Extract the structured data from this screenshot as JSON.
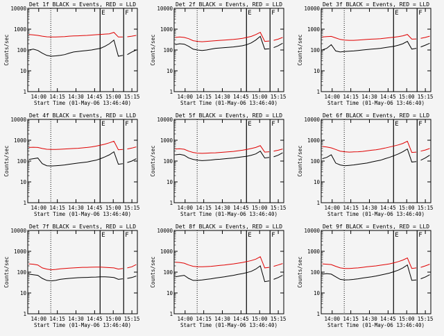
{
  "chart_data": [
    {
      "type": "line",
      "title": "Det 1f BLACK = Events, RED = LLD",
      "xlabel": "Start Time (01-May-06 13:46:40)",
      "ylabel": "Counts/sec",
      "yscale": "log",
      "ylim": [
        1,
        10000
      ],
      "x_ticks": [
        "14:00",
        "14:15",
        "14:30",
        "14:45",
        "15:00",
        "15:15"
      ],
      "y_ticks": [
        "1",
        "10",
        "100",
        "1000",
        "10000"
      ],
      "markers": [
        "E",
        "F"
      ],
      "series": [
        {
          "name": "Events",
          "color": "#000000",
          "values": [
            100,
            110,
            95,
            70,
            55,
            50,
            52,
            55,
            60,
            70,
            80,
            85,
            90,
            95,
            100,
            110,
            120,
            150,
            200,
            300,
            50,
            55,
            60,
            80,
            100
          ]
        },
        {
          "name": "LLD",
          "color": "#e00000",
          "values": [
            550,
            530,
            500,
            460,
            430,
            420,
            420,
            430,
            440,
            460,
            470,
            480,
            490,
            500,
            520,
            540,
            560,
            580,
            600,
            700,
            420,
            420,
            430,
            460,
            500
          ]
        }
      ]
    },
    {
      "type": "line",
      "title": "Det 2f BLACK = Events, RED = LLD",
      "xlabel": "Start Time (01-May-06 13:46:40)",
      "ylabel": "Counts/sec",
      "yscale": "log",
      "ylim": [
        1,
        10000
      ],
      "x_ticks": [
        "14:00",
        "14:15",
        "14:30",
        "14:45",
        "15:00",
        "15:15"
      ],
      "y_ticks": [
        "1",
        "10",
        "100",
        "1000",
        "10000"
      ],
      "markers": [
        "E",
        "F"
      ],
      "series": [
        {
          "name": "Events",
          "color": "#000000",
          "values": [
            180,
            200,
            190,
            150,
            110,
            100,
            95,
            100,
            110,
            120,
            125,
            130,
            135,
            140,
            150,
            160,
            180,
            220,
            300,
            450,
            110,
            115,
            130,
            160,
            210
          ]
        },
        {
          "name": "LLD",
          "color": "#e00000",
          "values": [
            400,
            420,
            400,
            350,
            280,
            260,
            250,
            260,
            270,
            280,
            290,
            300,
            310,
            320,
            340,
            360,
            400,
            450,
            550,
            700,
            260,
            270,
            290,
            330,
            400
          ]
        }
      ]
    },
    {
      "type": "line",
      "title": "Det 3f BLACK = Events, RED = LLD",
      "xlabel": "Start Time (01-May-06 13:46:40)",
      "ylabel": "Counts/sec",
      "yscale": "log",
      "ylim": [
        1,
        10000
      ],
      "x_ticks": [
        "14:00",
        "14:15",
        "14:30",
        "14:45",
        "15:00",
        "15:15"
      ],
      "y_ticks": [
        "1",
        "10",
        "100",
        "1000",
        "10000"
      ],
      "markers": [
        "E",
        "F"
      ],
      "series": [
        {
          "name": "Events",
          "color": "#000000",
          "values": [
            100,
            120,
            180,
            90,
            80,
            85,
            88,
            90,
            95,
            100,
            105,
            110,
            115,
            120,
            130,
            140,
            150,
            170,
            200,
            260,
            110,
            120,
            140,
            170,
            210
          ]
        },
        {
          "name": "LLD",
          "color": "#e00000",
          "values": [
            420,
            440,
            450,
            380,
            320,
            300,
            290,
            290,
            300,
            310,
            320,
            330,
            340,
            350,
            370,
            390,
            410,
            440,
            480,
            560,
            330,
            340,
            360,
            400,
            460
          ]
        }
      ]
    },
    {
      "type": "line",
      "title": "Det 4f BLACK = Events, RED = LLD",
      "xlabel": "Start Time (01-May-06 13:46:40)",
      "ylabel": "Counts/sec",
      "yscale": "log",
      "ylim": [
        1,
        10000
      ],
      "x_ticks": [
        "14:00",
        "14:15",
        "14:30",
        "14:45",
        "15:00",
        "15:15"
      ],
      "y_ticks": [
        "1",
        "10",
        "100",
        "1000",
        "10000"
      ],
      "markers": [
        "E",
        "F"
      ],
      "series": [
        {
          "name": "Events",
          "color": "#000000",
          "values": [
            120,
            130,
            140,
            75,
            60,
            58,
            60,
            62,
            65,
            70,
            75,
            80,
            85,
            90,
            100,
            110,
            130,
            160,
            200,
            280,
            70,
            75,
            85,
            100,
            130
          ]
        },
        {
          "name": "LLD",
          "color": "#e00000",
          "values": [
            450,
            460,
            450,
            400,
            370,
            360,
            360,
            370,
            380,
            390,
            400,
            410,
            430,
            450,
            480,
            520,
            580,
            650,
            750,
            900,
            350,
            360,
            380,
            420,
            480
          ]
        }
      ]
    },
    {
      "type": "line",
      "title": "Det 5f BLACK = Events, RED = LLD",
      "xlabel": "Start Time (01-May-06 13:46:40)",
      "ylabel": "Counts/sec",
      "yscale": "log",
      "ylim": [
        1,
        10000
      ],
      "x_ticks": [
        "14:00",
        "14:15",
        "14:30",
        "14:45",
        "15:00",
        "15:15"
      ],
      "y_ticks": [
        "1",
        "10",
        "100",
        "1000",
        "10000"
      ],
      "markers": [
        "E",
        "F"
      ],
      "series": [
        {
          "name": "Events",
          "color": "#000000",
          "values": [
            200,
            210,
            190,
            140,
            120,
            110,
            105,
            108,
            112,
            118,
            122,
            128,
            135,
            140,
            150,
            160,
            170,
            190,
            220,
            300,
            140,
            150,
            160,
            190,
            250
          ]
        },
        {
          "name": "LLD",
          "color": "#e00000",
          "values": [
            380,
            390,
            370,
            300,
            260,
            240,
            235,
            240,
            245,
            250,
            260,
            270,
            280,
            290,
            310,
            330,
            360,
            400,
            450,
            550,
            270,
            280,
            300,
            330,
            380
          ]
        }
      ]
    },
    {
      "type": "line",
      "title": "Det 6f BLACK = Events, RED = LLD",
      "xlabel": "Start Time (01-May-06 13:46:40)",
      "ylabel": "Counts/sec",
      "yscale": "log",
      "ylim": [
        1,
        10000
      ],
      "x_ticks": [
        "14:00",
        "14:15",
        "14:30",
        "14:45",
        "15:00",
        "15:15"
      ],
      "y_ticks": [
        "1",
        "10",
        "100",
        "1000",
        "10000"
      ],
      "markers": [
        "E",
        "F"
      ],
      "series": [
        {
          "name": "Events",
          "color": "#000000",
          "values": [
            130,
            150,
            200,
            80,
            65,
            60,
            62,
            65,
            70,
            75,
            80,
            90,
            100,
            110,
            130,
            150,
            180,
            220,
            280,
            380,
            90,
            95,
            110,
            140,
            190
          ]
        },
        {
          "name": "LLD",
          "color": "#e00000",
          "values": [
            500,
            470,
            430,
            360,
            300,
            280,
            270,
            275,
            280,
            290,
            310,
            330,
            350,
            380,
            420,
            470,
            530,
            600,
            700,
            900,
            260,
            270,
            300,
            340,
            400
          ]
        }
      ]
    },
    {
      "type": "line",
      "title": "Det 7f BLACK = Events, RED = LLD",
      "xlabel": "Start Time (01-May-06 13:46:40)",
      "ylabel": "Counts/sec",
      "yscale": "log",
      "ylim": [
        1,
        10000
      ],
      "x_ticks": [
        "14:00",
        "14:15",
        "14:30",
        "14:45",
        "15:00",
        "15:15"
      ],
      "y_ticks": [
        "1",
        "10",
        "100",
        "1000",
        "10000"
      ],
      "markers": [
        "E",
        "F"
      ],
      "series": [
        {
          "name": "Events",
          "color": "#000000",
          "values": [
            80,
            75,
            70,
            50,
            40,
            38,
            40,
            45,
            48,
            50,
            52,
            54,
            55,
            56,
            57,
            58,
            60,
            60,
            58,
            55,
            45,
            48,
            50,
            55,
            65
          ]
        },
        {
          "name": "LLD",
          "color": "#e00000",
          "values": [
            250,
            240,
            220,
            160,
            140,
            130,
            135,
            145,
            150,
            155,
            160,
            165,
            170,
            170,
            172,
            174,
            175,
            170,
            165,
            160,
            140,
            150,
            160,
            180,
            230
          ]
        }
      ]
    },
    {
      "type": "line",
      "title": "Det 8f BLACK = Events, RED = LLD",
      "xlabel": "Start Time (01-May-06 13:46:40)",
      "ylabel": "Counts/sec",
      "yscale": "log",
      "ylim": [
        1,
        10000
      ],
      "x_ticks": [
        "14:00",
        "14:15",
        "14:30",
        "14:45",
        "15:00",
        "15:15"
      ],
      "y_ticks": [
        "1",
        "10",
        "100",
        "1000",
        "10000"
      ],
      "markers": [
        "E",
        "F"
      ],
      "series": [
        {
          "name": "Events",
          "color": "#000000",
          "values": [
            60,
            65,
            70,
            50,
            40,
            40,
            42,
            45,
            48,
            52,
            56,
            60,
            65,
            70,
            78,
            85,
            95,
            110,
            140,
            200,
            35,
            38,
            45,
            55,
            70
          ]
        },
        {
          "name": "LLD",
          "color": "#e00000",
          "values": [
            300,
            290,
            270,
            220,
            190,
            180,
            180,
            185,
            190,
            200,
            210,
            220,
            235,
            250,
            270,
            290,
            320,
            360,
            420,
            550,
            160,
            170,
            190,
            220,
            260
          ]
        }
      ]
    },
    {
      "type": "line",
      "title": "Det 9f BLACK = Events, RED = LLD",
      "xlabel": "Start Time (01-May-06 13:46:40)",
      "ylabel": "Counts/sec",
      "yscale": "log",
      "ylim": [
        1,
        10000
      ],
      "x_ticks": [
        "14:00",
        "14:15",
        "14:30",
        "14:45",
        "15:00",
        "15:15"
      ],
      "y_ticks": [
        "1",
        "10",
        "100",
        "1000",
        "10000"
      ],
      "markers": [
        "E",
        "F"
      ],
      "series": [
        {
          "name": "Events",
          "color": "#000000",
          "values": [
            80,
            85,
            80,
            60,
            45,
            42,
            43,
            45,
            48,
            52,
            56,
            60,
            65,
            72,
            80,
            90,
            105,
            125,
            160,
            220,
            40,
            42,
            48,
            58,
            75
          ]
        },
        {
          "name": "LLD",
          "color": "#e00000",
          "values": [
            250,
            240,
            230,
            190,
            160,
            150,
            150,
            155,
            160,
            170,
            180,
            190,
            200,
            215,
            230,
            250,
            280,
            320,
            380,
            480,
            150,
            160,
            170,
            200,
            240
          ]
        }
      ]
    }
  ]
}
